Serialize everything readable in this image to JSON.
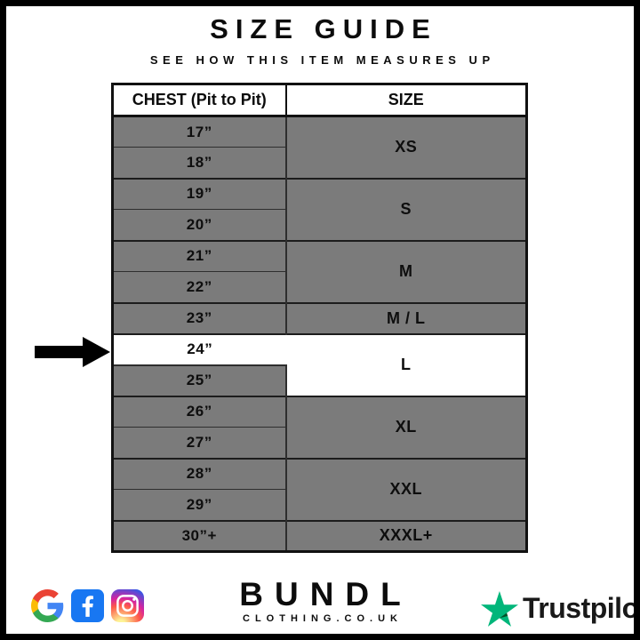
{
  "header": {
    "title": "SIZE GUIDE",
    "subtitle": "SEE HOW THIS ITEM MEASURES UP"
  },
  "chart_data": {
    "type": "table",
    "title": "SIZE GUIDE",
    "subtitle": "SEE HOW THIS ITEM MEASURES UP",
    "columns": [
      "CHEST (Pit to Pit)",
      "SIZE"
    ],
    "rows": [
      [
        "17”",
        "XS"
      ],
      [
        "18”",
        "XS"
      ],
      [
        "19”",
        "S"
      ],
      [
        "20”",
        "S"
      ],
      [
        "21”",
        "M"
      ],
      [
        "22”",
        "M"
      ],
      [
        "23”",
        "M / L"
      ],
      [
        "24”",
        "L"
      ],
      [
        "25”",
        "L"
      ],
      [
        "26”",
        "XL"
      ],
      [
        "27”",
        "XL"
      ],
      [
        "28”",
        "XXL"
      ],
      [
        "29”",
        "XXL"
      ],
      [
        "30”+",
        "XXXL+"
      ]
    ],
    "highlighted_row": {
      "chest": "24”",
      "size": "L",
      "marker": "black-left-arrow"
    }
  },
  "table": {
    "headers": [
      "CHEST (Pit to Pit)",
      "SIZE"
    ],
    "groups": [
      {
        "size": "XS",
        "chest": [
          "17”",
          "18”"
        ]
      },
      {
        "size": "S",
        "chest": [
          "19”",
          "20”"
        ]
      },
      {
        "size": "M",
        "chest": [
          "21”",
          "22”"
        ]
      },
      {
        "size": "M / L",
        "chest": [
          "23”"
        ]
      },
      {
        "size": "L",
        "chest": [
          "24”",
          "25”"
        ],
        "highlight": true,
        "highlight_chest": "24”"
      },
      {
        "size": "XL",
        "chest": [
          "26”",
          "27”"
        ]
      },
      {
        "size": "XXL",
        "chest": [
          "28”",
          "29”"
        ]
      },
      {
        "size": "XXXL+",
        "chest": [
          "30”+"
        ]
      }
    ]
  },
  "footer": {
    "brand": "BUNDL",
    "brand_sub": "CLOTHING.CO.UK",
    "trustpilot_label": "Trustpilot",
    "icons": [
      "google-icon",
      "facebook-icon",
      "instagram-icon",
      "trustpilot-star-icon"
    ]
  },
  "colors": {
    "cell_gray": "#7b7b7b",
    "highlight_white": "#ffffff",
    "border_black": "#111111",
    "facebook_blue": "#1877f2",
    "trustpilot_green": "#00b67a",
    "trustpilot_dark_green": "#005128"
  }
}
